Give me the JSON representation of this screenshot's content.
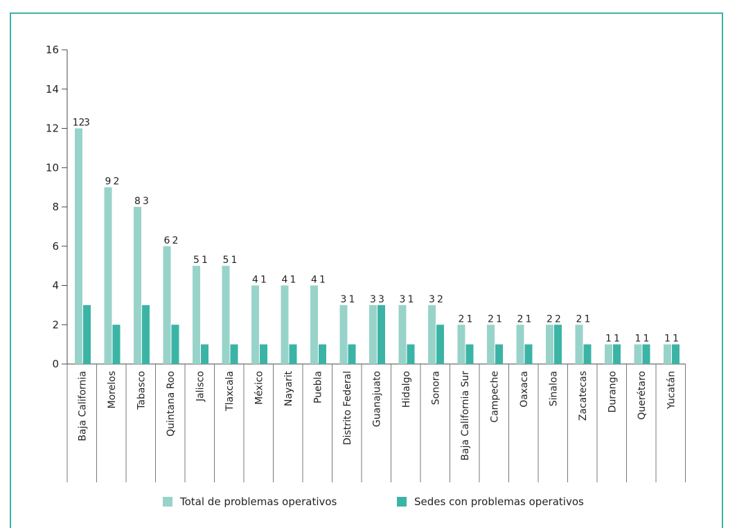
{
  "chart_data": {
    "type": "bar",
    "categories": [
      "Baja California",
      "Morelos",
      "Tabasco",
      "Quintana Roo",
      "Jalisco",
      "Tlaxcala",
      "México",
      "Nayarit",
      "Puebla",
      "Distrito Federal",
      "Guanajuato",
      "Hidalgo",
      "Sonora",
      "Baja California Sur",
      "Campeche",
      "Oaxaca",
      "Sinaloa",
      "Zacatecas",
      "Durango",
      "Querétaro",
      "Yucatán"
    ],
    "series": [
      {
        "name": "Total de problemas operativos",
        "color": "#98d3c9",
        "values": [
          12,
          9,
          8,
          6,
          5,
          5,
          4,
          4,
          4,
          3,
          3,
          3,
          3,
          2,
          2,
          2,
          2,
          2,
          1,
          1,
          1
        ]
      },
      {
        "name": "Sedes con problemas operativos",
        "color": "#3bb4a6",
        "values": [
          3,
          2,
          3,
          2,
          1,
          1,
          1,
          1,
          1,
          1,
          3,
          1,
          2,
          1,
          1,
          1,
          2,
          1,
          1,
          1,
          1
        ]
      }
    ],
    "ylim": [
      0,
      16
    ],
    "yticks": [
      0,
      2,
      4,
      6,
      8,
      10,
      12,
      14,
      16
    ],
    "title": "",
    "xlabel": "",
    "ylabel": "",
    "legend_position": "bottom",
    "grid": false
  }
}
